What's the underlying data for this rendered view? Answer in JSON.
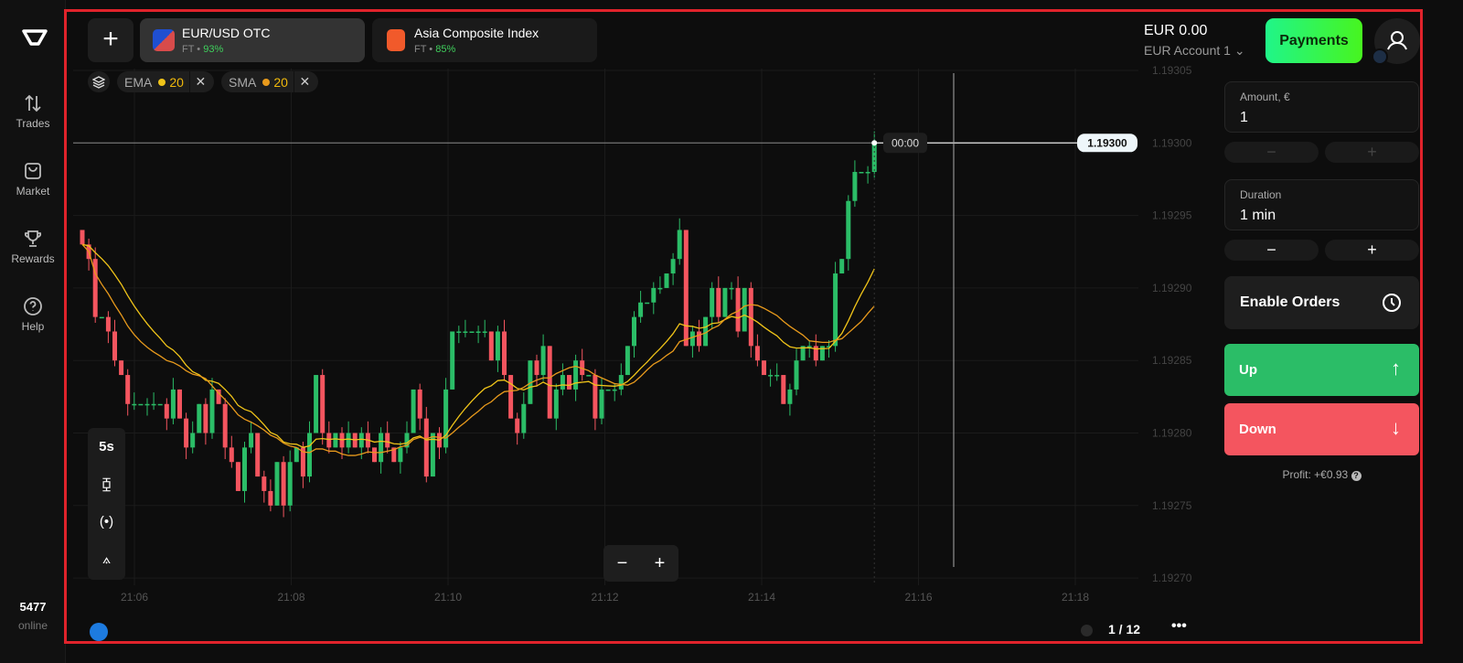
{
  "sidebar": {
    "items": [
      {
        "label": "Trades",
        "icon": "arrows-up-down-icon"
      },
      {
        "label": "Market",
        "icon": "bag-icon"
      },
      {
        "label": "Rewards",
        "icon": "trophy-icon"
      },
      {
        "label": "Help",
        "icon": "help-icon"
      }
    ],
    "online_count": "5477",
    "online_label": "online"
  },
  "tabs": [
    {
      "name": "EUR/USD OTC",
      "type": "FT",
      "payout": "93%",
      "active": true
    },
    {
      "name": "Asia Composite Index",
      "type": "FT",
      "payout": "85%",
      "active": false
    }
  ],
  "indicators": [
    {
      "name": "EMA",
      "period": "20",
      "color": "#f0c419"
    },
    {
      "name": "SMA",
      "period": "20",
      "color": "#e89a1c"
    }
  ],
  "account": {
    "balance": "EUR 0.00",
    "name": "EUR Account 1"
  },
  "payments_label": "Payments",
  "trade": {
    "amount_label": "Amount, €",
    "amount": "1",
    "duration_label": "Duration",
    "duration": "1 min",
    "enable_orders": "Enable Orders",
    "up": "Up",
    "down": "Down",
    "profit": "Profit: +€0.93",
    "up_color": "#2bbd67",
    "down_color": "#f4555f"
  },
  "chart": {
    "timeframe": "5s",
    "current_price": "1.19300",
    "timer": "00:00",
    "price_ticks": [
      "1.19305",
      "1.19300",
      "1.19295",
      "1.19290",
      "1.19285",
      "1.19280",
      "1.19275",
      "1.19270"
    ],
    "time_ticks": [
      "21:06",
      "21:08",
      "21:10",
      "21:12",
      "21:14",
      "21:16",
      "21:18"
    ],
    "closes": [
      1.19293,
      1.19292,
      1.19288,
      1.19288,
      1.19287,
      1.19285,
      1.19284,
      1.19282,
      1.19282,
      1.19282,
      1.19282,
      1.19282,
      1.19282,
      1.19281,
      1.19283,
      1.19281,
      1.19279,
      1.1928,
      1.19282,
      1.1928,
      1.19283,
      1.19282,
      1.19279,
      1.19278,
      1.19276,
      1.19279,
      1.1928,
      1.19277,
      1.19276,
      1.19275,
      1.19278,
      1.19275,
      1.19278,
      1.19279,
      1.19277,
      1.1928,
      1.19284,
      1.1928,
      1.19279,
      1.1928,
      1.19279,
      1.1928,
      1.19279,
      1.1928,
      1.19279,
      1.19278,
      1.1928,
      1.19279,
      1.19278,
      1.19279,
      1.1928,
      1.19283,
      1.19281,
      1.19277,
      1.1928,
      1.19279,
      1.19283,
      1.19287,
      1.19287,
      1.19287,
      1.19287,
      1.19287,
      1.19287,
      1.19285,
      1.19287,
      1.19284,
      1.19281,
      1.1928,
      1.19282,
      1.19285,
      1.19284,
      1.19286,
      1.19281,
      1.19283,
      1.19284,
      1.19283,
      1.19285,
      1.19284,
      1.19284,
      1.19281,
      1.19283,
      1.19283,
      1.19283,
      1.19284,
      1.19286,
      1.19288,
      1.19289,
      1.19289,
      1.1929,
      1.1929,
      1.19291,
      1.19292,
      1.19294,
      1.19286,
      1.19287,
      1.19286,
      1.19288,
      1.1929,
      1.19288,
      1.1929,
      1.1929,
      1.19287,
      1.1929,
      1.19286,
      1.19285,
      1.19284,
      1.19284,
      1.19284,
      1.19282,
      1.19283,
      1.19285,
      1.19286,
      1.19286,
      1.19285,
      1.19286,
      1.19286,
      1.19291,
      1.19292,
      1.19296,
      1.19298,
      1.19298,
      1.19298,
      1.193
    ]
  },
  "pagination": "1 / 12"
}
